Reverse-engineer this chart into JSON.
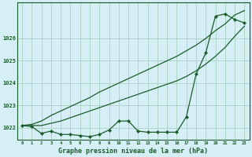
{
  "xlabel": "Graphe pression niveau de la mer (hPa)",
  "background_color": "#d6eef5",
  "grid_color": "#b0d4c8",
  "line_color": "#1a5c2a",
  "x": [
    0,
    1,
    2,
    3,
    4,
    5,
    6,
    7,
    8,
    9,
    10,
    11,
    12,
    13,
    14,
    15,
    16,
    17,
    18,
    19,
    20,
    21,
    22,
    23
  ],
  "y_main": [
    1022.1,
    1022.05,
    1021.75,
    1021.85,
    1021.7,
    1021.7,
    1021.65,
    1021.6,
    1021.7,
    1021.9,
    1022.3,
    1022.3,
    1021.85,
    1021.8,
    1021.8,
    1021.8,
    1021.8,
    1022.5,
    1024.4,
    1025.35,
    1027.0,
    1027.1,
    1026.85,
    1026.7
  ],
  "y_upper": [
    1022.1,
    1022.15,
    1022.3,
    1022.55,
    1022.75,
    1022.95,
    1023.15,
    1023.35,
    1023.6,
    1023.8,
    1024.0,
    1024.2,
    1024.4,
    1024.6,
    1024.8,
    1025.0,
    1025.2,
    1025.45,
    1025.7,
    1026.0,
    1026.35,
    1026.65,
    1027.05,
    1027.25
  ],
  "y_lower": [
    1022.1,
    1022.1,
    1022.1,
    1022.2,
    1022.3,
    1022.45,
    1022.6,
    1022.75,
    1022.9,
    1023.05,
    1023.2,
    1023.35,
    1023.5,
    1023.65,
    1023.8,
    1023.95,
    1024.1,
    1024.3,
    1024.55,
    1024.85,
    1025.2,
    1025.6,
    1026.1,
    1026.55
  ],
  "ylim": [
    1021.45,
    1027.6
  ],
  "yticks": [
    1022,
    1023,
    1024,
    1025,
    1026
  ],
  "xticks": [
    0,
    1,
    2,
    3,
    4,
    5,
    6,
    7,
    8,
    9,
    10,
    11,
    12,
    13,
    14,
    15,
    16,
    17,
    18,
    19,
    20,
    21,
    22,
    23
  ]
}
